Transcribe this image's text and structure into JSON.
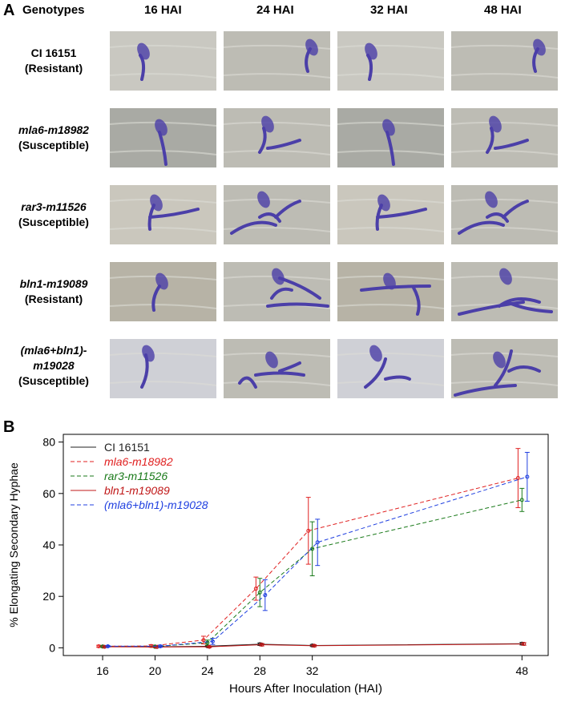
{
  "panel_a": {
    "letter": "A",
    "header_label": "Genotypes",
    "columns": [
      "16 HAI",
      "24 HAI",
      "32 HAI",
      "48 HAI"
    ],
    "rows": [
      {
        "line1": "CI 16151",
        "line2": "(Resistant)",
        "line1_italic": false
      },
      {
        "line1": "mla6-m18982",
        "line2": "(Susceptible)",
        "line1_italic": true
      },
      {
        "line1": "rar3-m11526",
        "line2": "(Susceptible)",
        "line1_italic": true
      },
      {
        "line1": "bln1-m19089",
        "line2": "(Resistant)",
        "line1_italic": true
      },
      {
        "line1": "(mla6+bln1)-",
        "line1b": "m19028",
        "line2": "(Susceptible)",
        "line1_italic": true
      }
    ],
    "stain_color": "#4b3fa8"
  },
  "panel_b": {
    "letter": "B"
  },
  "chart_data": {
    "type": "line",
    "xlabel": "Hours After Inoculation (HAI)",
    "ylabel": "% Elongating Secondary Hyphae",
    "x": [
      16,
      20,
      24,
      28,
      32,
      48
    ],
    "xlim": [
      13,
      50
    ],
    "ylim": [
      -3,
      83
    ],
    "yticks": [
      0,
      20,
      40,
      60,
      80
    ],
    "legend_position": "top-left",
    "series": [
      {
        "name": "CI 16151",
        "color": "#222222",
        "dash": "solid",
        "italic": false,
        "offset": 0.0,
        "values": [
          0.5,
          0.4,
          0.6,
          1.4,
          0.9,
          1.6
        ],
        "err": [
          0.3,
          0.3,
          0.3,
          0.5,
          0.4,
          0.5
        ]
      },
      {
        "name": "mla6-m18982",
        "color": "#e02020",
        "dash": "dashed",
        "italic": true,
        "offset": -0.3,
        "values": [
          0.6,
          0.7,
          3.0,
          23.0,
          45.5,
          66.0
        ],
        "err": [
          0.4,
          0.5,
          1.5,
          4.5,
          13.0,
          11.5
        ]
      },
      {
        "name": "rar3-m11526",
        "color": "#1a7a1a",
        "dash": "dashed",
        "italic": true,
        "offset": 0.0,
        "values": [
          0.5,
          0.5,
          2.0,
          21.5,
          38.5,
          57.5
        ],
        "err": [
          0.3,
          0.3,
          1.0,
          5.5,
          10.5,
          4.5
        ]
      },
      {
        "name": "bln1-m19089",
        "color": "#c01818",
        "dash": "solid",
        "italic": true,
        "offset": 0.15,
        "values": [
          0.4,
          0.3,
          0.4,
          1.2,
          0.8,
          1.5
        ],
        "err": [
          0.3,
          0.2,
          0.3,
          0.5,
          0.4,
          0.5
        ]
      },
      {
        "name": "(mla6+bln1)-m19028",
        "color": "#2040e0",
        "dash": "dashed",
        "italic": true,
        "offset": 0.4,
        "values": [
          0.6,
          0.6,
          2.5,
          20.5,
          41.0,
          66.5
        ],
        "err": [
          0.3,
          0.4,
          1.2,
          6.0,
          9.0,
          9.5
        ]
      }
    ]
  }
}
